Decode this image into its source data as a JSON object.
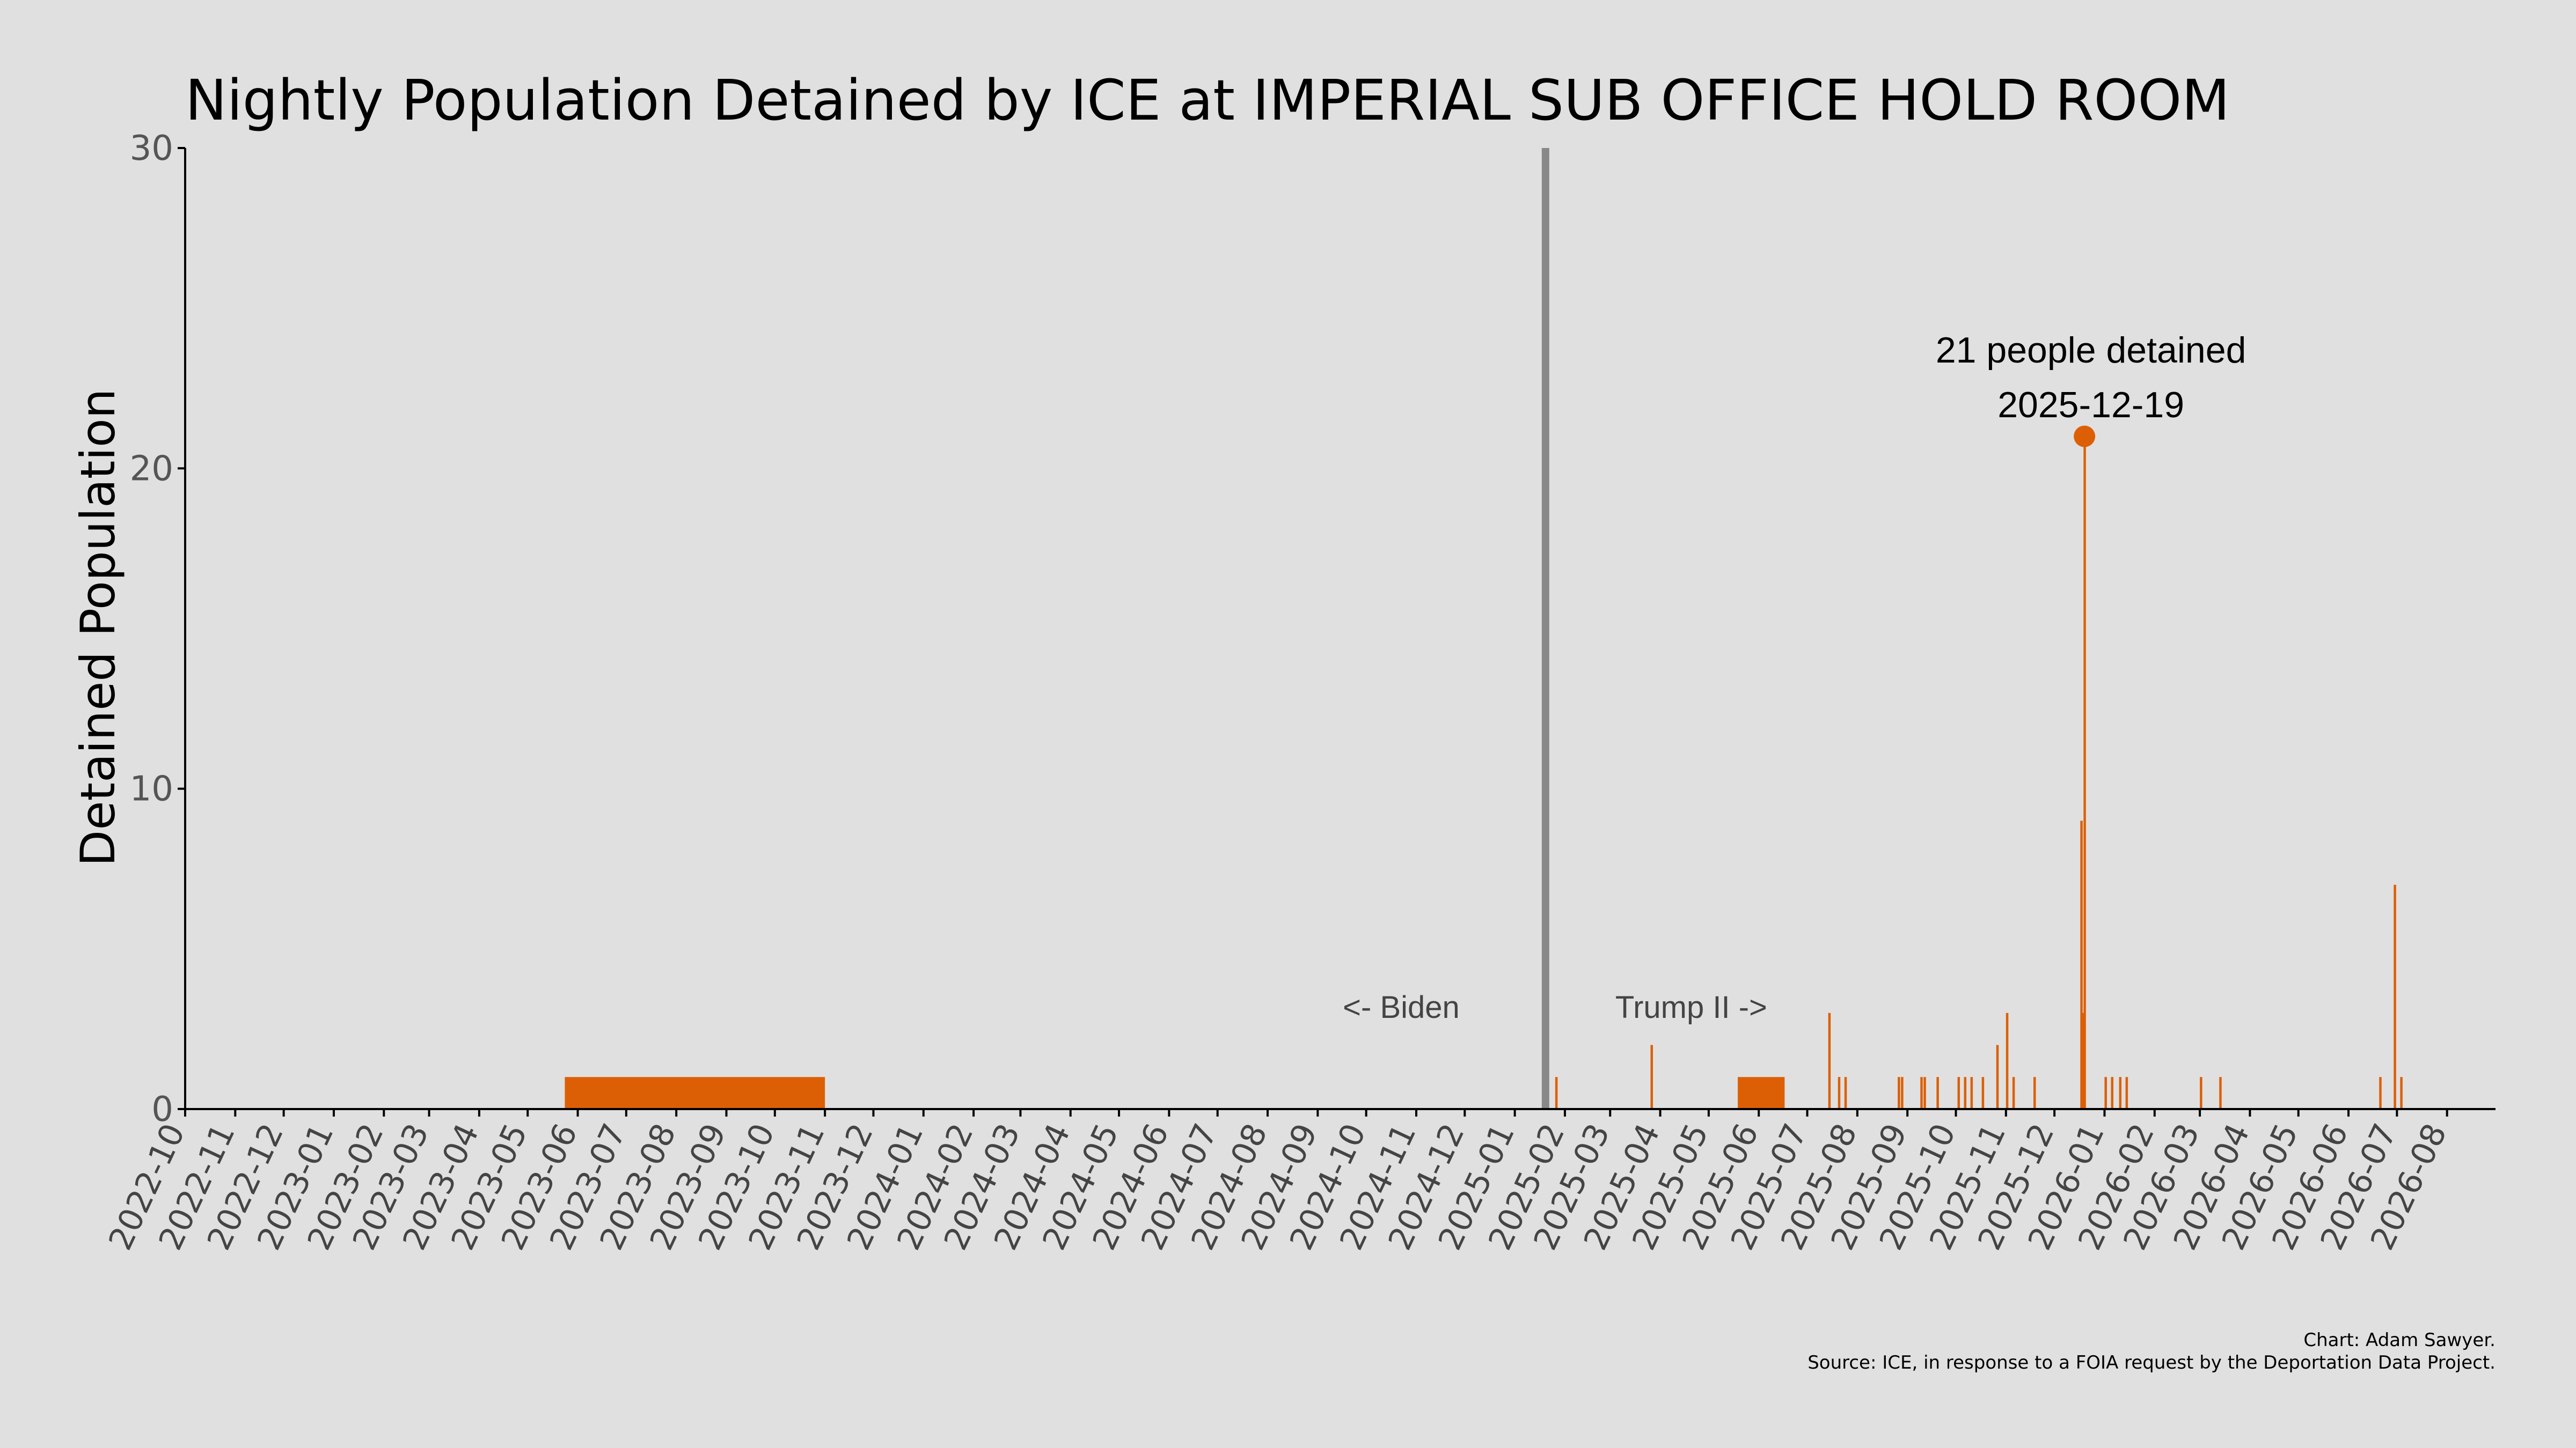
{
  "colors": {
    "background": "#e0e0e0",
    "bar": "#dd5f05",
    "divider": "#888888",
    "axis": "#000000"
  },
  "footer": {
    "credit": "Chart: Adam Sawyer.",
    "source": "Source: ICE, in response to a FOIA request by the Deportation Data Project."
  },
  "chart_data": {
    "type": "bar",
    "title": "Nightly Population Detained by ICE at IMPERIAL SUB OFFICE HOLD ROOM",
    "xlabel": "",
    "ylabel": "Detained Population",
    "ylim": [
      0,
      30
    ],
    "yticks": [
      0,
      10,
      20,
      30
    ],
    "xlim": [
      "2022-10-01",
      "2026-08-31"
    ],
    "xticks": [
      "2022-10",
      "2022-11",
      "2022-12",
      "2023-01",
      "2023-02",
      "2023-03",
      "2023-04",
      "2023-05",
      "2023-06",
      "2023-07",
      "2023-08",
      "2023-09",
      "2023-10",
      "2023-11",
      "2023-12",
      "2024-01",
      "2024-02",
      "2024-03",
      "2024-04",
      "2024-05",
      "2024-06",
      "2024-07",
      "2024-08",
      "2024-09",
      "2024-10",
      "2024-11",
      "2024-12",
      "2025-01",
      "2025-02",
      "2025-03",
      "2025-04",
      "2025-05",
      "2025-06",
      "2025-07",
      "2025-08",
      "2025-09",
      "2025-10",
      "2025-11",
      "2025-12",
      "2026-01",
      "2026-02",
      "2026-03",
      "2026-04",
      "2026-05",
      "2026-06",
      "2026-07",
      "2026-08"
    ],
    "grid": false,
    "legend": "none",
    "ranges": [
      {
        "start": "2023-05-24",
        "end": "2023-10-31",
        "value": 1
      },
      {
        "start": "2025-05-19",
        "end": "2025-06-16",
        "value": 1
      }
    ],
    "bars": [
      {
        "date": "2025-01-26",
        "value": 1
      },
      {
        "date": "2025-03-26",
        "value": 2
      },
      {
        "date": "2025-07-14",
        "value": 3
      },
      {
        "date": "2025-07-20",
        "value": 1
      },
      {
        "date": "2025-07-24",
        "value": 1
      },
      {
        "date": "2025-08-26",
        "value": 1
      },
      {
        "date": "2025-08-28",
        "value": 1
      },
      {
        "date": "2025-09-09",
        "value": 1
      },
      {
        "date": "2025-09-11",
        "value": 1
      },
      {
        "date": "2025-09-19",
        "value": 1
      },
      {
        "date": "2025-10-02",
        "value": 1
      },
      {
        "date": "2025-10-06",
        "value": 1
      },
      {
        "date": "2025-10-10",
        "value": 1
      },
      {
        "date": "2025-10-17",
        "value": 1
      },
      {
        "date": "2025-10-26",
        "value": 2
      },
      {
        "date": "2025-11-01",
        "value": 3
      },
      {
        "date": "2025-11-05",
        "value": 1
      },
      {
        "date": "2025-11-18",
        "value": 1
      },
      {
        "date": "2025-12-17",
        "value": 9
      },
      {
        "date": "2025-12-18",
        "value": 3
      },
      {
        "date": "2025-12-19",
        "value": 21
      },
      {
        "date": "2026-01-01",
        "value": 1
      },
      {
        "date": "2026-01-05",
        "value": 1
      },
      {
        "date": "2026-01-10",
        "value": 1
      },
      {
        "date": "2026-01-14",
        "value": 1
      },
      {
        "date": "2026-03-01",
        "value": 1
      },
      {
        "date": "2026-03-13",
        "value": 1
      },
      {
        "date": "2026-06-20",
        "value": 1
      },
      {
        "date": "2026-06-29",
        "value": 7
      },
      {
        "date": "2026-07-03",
        "value": 1
      }
    ],
    "divider_date": "2025-01-20",
    "annotations": {
      "biden_label": "<- Biden",
      "trump_label": "Trump II ->",
      "peak": {
        "date": "2025-12-19",
        "value": 21,
        "label_line1": "21 people detained",
        "label_line2": "2025-12-19"
      }
    }
  }
}
